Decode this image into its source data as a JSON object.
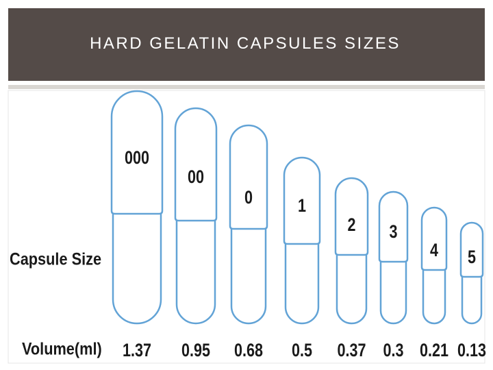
{
  "header": {
    "title": "HARD GELATIN CAPSULES SIZES"
  },
  "figure": {
    "row_labels": {
      "size": "Capsule Size",
      "volume": "Volume(ml)"
    },
    "capsules": [
      {
        "size": "000",
        "volume": "1.37"
      },
      {
        "size": "00",
        "volume": "0.95"
      },
      {
        "size": "0",
        "volume": "0.68"
      },
      {
        "size": "1",
        "volume": "0.5"
      },
      {
        "size": "2",
        "volume": "0.37"
      },
      {
        "size": "3",
        "volume": "0.3"
      },
      {
        "size": "4",
        "volume": "0.21"
      },
      {
        "size": "5",
        "volume": "0.13"
      }
    ]
  }
}
